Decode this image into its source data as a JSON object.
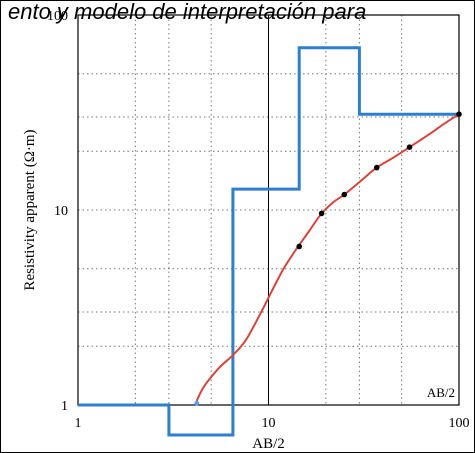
{
  "caption_text": "ento y modelo de interpretación para",
  "chart_data": {
    "type": "line",
    "xscale": "log",
    "yscale": "log",
    "xlim": [
      1,
      100
    ],
    "ylim": [
      1,
      100
    ],
    "grid": true,
    "xlabel": "AB/2",
    "ylabel": "Resistivity apparent (Ω·m)",
    "annotation": "AB/2",
    "x_ticks": [
      "1",
      "10",
      "100"
    ],
    "y_ticks": [
      "1",
      "10",
      "100"
    ],
    "model_color": "#2f7fd0",
    "curve_color": "#d9443a",
    "model": [
      [
        0.8,
        1.0
      ],
      [
        3.0,
        1.0
      ],
      [
        3.0,
        0.6
      ],
      [
        6.5,
        0.6
      ],
      [
        6.5,
        12.8
      ],
      [
        14.5,
        12.8
      ],
      [
        14.5,
        68
      ],
      [
        30,
        68
      ],
      [
        30,
        31
      ],
      [
        100,
        31
      ]
    ],
    "curve": [
      [
        4.2,
        1.05
      ],
      [
        4.6,
        1.25
      ],
      [
        5.5,
        1.55
      ],
      [
        6.5,
        1.8
      ],
      [
        7.6,
        2.15
      ],
      [
        9.0,
        2.9
      ],
      [
        10.5,
        3.9
      ],
      [
        12.0,
        5.0
      ],
      [
        14.0,
        6.3
      ],
      [
        16.5,
        7.9
      ],
      [
        19.0,
        9.6
      ],
      [
        22.0,
        11.0
      ],
      [
        25.0,
        12.0
      ],
      [
        30.0,
        13.9
      ],
      [
        37.0,
        16.5
      ],
      [
        45.0,
        18.5
      ],
      [
        55.0,
        21.0
      ],
      [
        70.0,
        24.5
      ],
      [
        85.0,
        28.0
      ],
      [
        100.0,
        31.0
      ]
    ],
    "points": [
      [
        14.5,
        6.5
      ],
      [
        19.0,
        9.6
      ],
      [
        25.0,
        12.0
      ],
      [
        37.0,
        16.5
      ],
      [
        55.0,
        21.0
      ],
      [
        100.0,
        31.0
      ]
    ],
    "start_point": [
      4.2,
      1.02
    ]
  }
}
